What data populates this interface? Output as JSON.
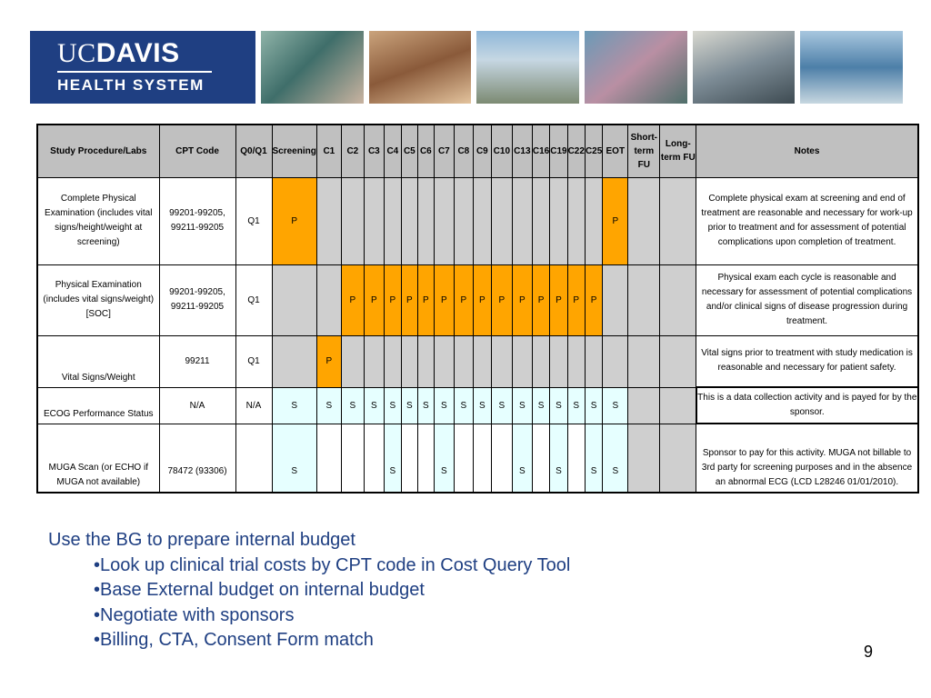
{
  "banner": {
    "logo_uc": "UC",
    "logo_davis": "DAVIS",
    "logo_sub": "HEALTH SYSTEM"
  },
  "table": {
    "headers": {
      "procedure": "Study Procedure/Labs",
      "cpt": "CPT Code",
      "q": "Q0/Q1",
      "screening": "Screening",
      "cycles": [
        "C1",
        "C2",
        "C3",
        "C4",
        "C5",
        "C6",
        "C7",
        "C8",
        "C9",
        "C10",
        "C13",
        "C16",
        "C19",
        "C22",
        "C25"
      ],
      "eot": "EOT",
      "short_fu": "Short-term FU",
      "long_fu": "Long-term FU",
      "notes": "Notes"
    },
    "rows": [
      {
        "procedure": "Complete Physical Examination (includes vital signs/height/weight at screening)",
        "cpt": "99201-99205, 99211-99205",
        "q": "Q1",
        "cells": [
          "P",
          "",
          "",
          "",
          "",
          "",
          "",
          "",
          "",
          "",
          "",
          "",
          "",
          "",
          "",
          "",
          "P",
          "",
          ""
        ],
        "notes": "Complete physical exam at screening and end of treatment are reasonable and necessary for work-up prior to treatment and for assessment of potential complications upon completion of treatment."
      },
      {
        "procedure": "Physical Examination (includes vital signs/weight)[SOC]",
        "cpt": "99201-99205, 99211-99205",
        "q": "Q1",
        "cells": [
          "",
          "",
          "P",
          "P",
          "P",
          "P",
          "P",
          "P",
          "P",
          "P",
          "P",
          "P",
          "P",
          "P",
          "P",
          "P",
          "",
          "",
          ""
        ],
        "notes": "Physical exam each cycle is reasonable and necessary for assessment of potential complications and/or clinical signs of disease progression during treatment."
      },
      {
        "procedure": "Vital Signs/Weight",
        "cpt": "99211",
        "q": "Q1",
        "cells": [
          "",
          "P",
          "",
          "",
          "",
          "",
          "",
          "",
          "",
          "",
          "",
          "",
          "",
          "",
          "",
          "",
          "",
          "",
          ""
        ],
        "notes": "Vital signs prior to treatment with study medication is reasonable and necessary for patient safety."
      },
      {
        "procedure": "ECOG Performance Status",
        "cpt": "N/A",
        "q": "N/A",
        "cells": [
          "S",
          "S",
          "S",
          "S",
          "S",
          "S",
          "S",
          "S",
          "S",
          "S",
          "S",
          "S",
          "S",
          "S",
          "S",
          "S",
          "S",
          "",
          ""
        ],
        "notes": "This is a data collection activity and is payed for by the sponsor."
      },
      {
        "procedure": "MUGA Scan (or ECHO if MUGA not available)",
        "cpt": "78472 (93306)",
        "q": "",
        "cells": [
          "S",
          "",
          "",
          "",
          "S",
          "",
          "",
          "S",
          "",
          "",
          "",
          "S",
          "",
          "S",
          "",
          "S",
          "S",
          "",
          ""
        ],
        "notes": "Sponsor to pay for this activity. MUGA not billable to 3rd party for screening purposes and in the absence an abnormal ECG (LCD L28246 01/01/2010)."
      }
    ]
  },
  "bullets": {
    "intro": "Use the BG to prepare internal budget",
    "items": [
      "•Look up clinical trial costs by CPT code in Cost Query Tool",
      "•Base External budget on internal budget",
      "•Negotiate with sponsors",
      "•Billing, CTA, Consent Form match"
    ]
  },
  "page_number": "9"
}
